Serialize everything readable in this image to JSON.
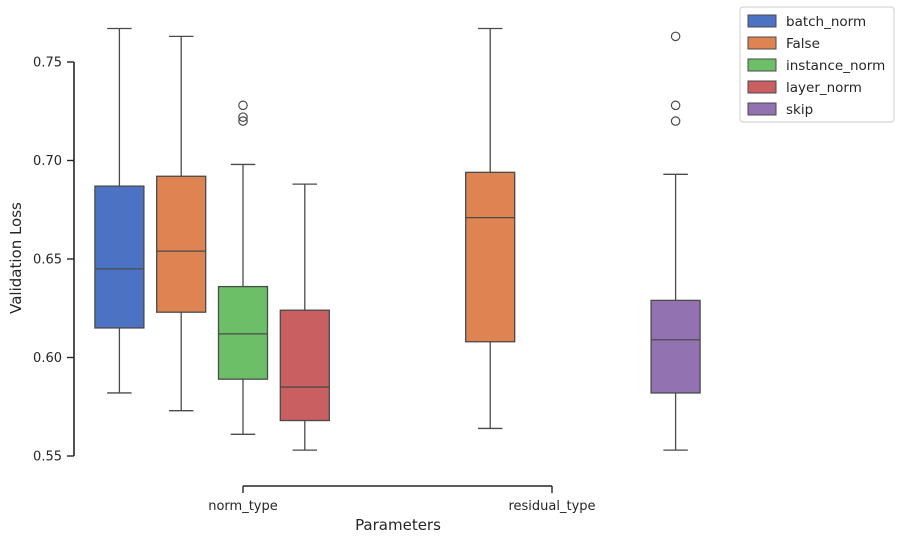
{
  "chart_data": {
    "type": "box",
    "xlabel": "Parameters",
    "ylabel": "Validation Loss",
    "ylim": [
      0.55,
      0.77
    ],
    "yticks": [
      "0.55",
      "0.60",
      "0.65",
      "0.70",
      "0.75"
    ],
    "categories": [
      "norm_type",
      "residual_type"
    ],
    "legend": {
      "placement": "outside-top-right",
      "entries": [
        {
          "name": "batch_norm",
          "color": "#4c72c4"
        },
        {
          "name": "False",
          "color": "#dd8452"
        },
        {
          "name": "instance_norm",
          "color": "#6cbf66"
        },
        {
          "name": "layer_norm",
          "color": "#c95f60"
        },
        {
          "name": "skip",
          "color": "#9372b2"
        }
      ]
    },
    "boxes": [
      {
        "category": "norm_type",
        "hue": "batch_norm",
        "whisker_low": 0.582,
        "q1": 0.615,
        "median": 0.645,
        "q3": 0.687,
        "whisker_high": 0.767,
        "outliers": []
      },
      {
        "category": "norm_type",
        "hue": "False",
        "whisker_low": 0.573,
        "q1": 0.623,
        "median": 0.654,
        "q3": 0.692,
        "whisker_high": 0.763,
        "outliers": []
      },
      {
        "category": "norm_type",
        "hue": "instance_norm",
        "whisker_low": 0.561,
        "q1": 0.589,
        "median": 0.612,
        "q3": 0.636,
        "whisker_high": 0.698,
        "outliers": [
          0.72,
          0.722,
          0.728
        ]
      },
      {
        "category": "norm_type",
        "hue": "layer_norm",
        "whisker_low": 0.553,
        "q1": 0.568,
        "median": 0.585,
        "q3": 0.624,
        "whisker_high": 0.688,
        "outliers": []
      },
      {
        "category": "residual_type",
        "hue": "False",
        "whisker_low": 0.564,
        "q1": 0.608,
        "median": 0.671,
        "q3": 0.694,
        "whisker_high": 0.767,
        "outliers": []
      },
      {
        "category": "residual_type",
        "hue": "skip",
        "whisker_low": 0.553,
        "q1": 0.582,
        "median": 0.609,
        "q3": 0.629,
        "whisker_high": 0.693,
        "outliers": [
          0.72,
          0.728,
          0.763
        ]
      }
    ],
    "grid": false
  }
}
